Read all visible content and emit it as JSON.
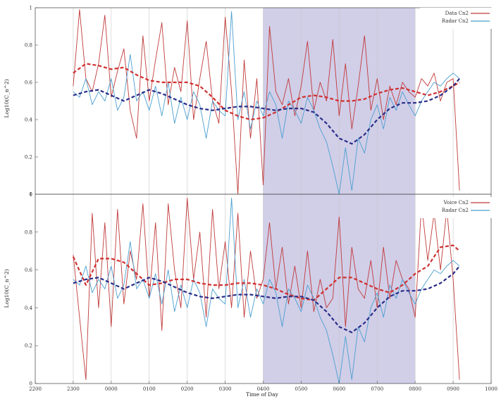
{
  "chart_data": [
    {
      "type": "line",
      "panel": "top",
      "xlabel": "",
      "ylabel": "Log10(C_n^2)",
      "xlim": [
        2200,
        1000
      ],
      "ylim": [
        0,
        1
      ],
      "yticks": [
        "0",
        "0.2",
        "0.4",
        "0.6",
        "0.8",
        "1"
      ],
      "legend_position": "top-right",
      "grid": "vertical",
      "shaded_span": [
        "0400",
        "0800"
      ],
      "colors": {
        "series_a": "#c03a3a",
        "series_b": "#4a9fd0",
        "trend_a": "#d03030",
        "trend_b": "#2a2e88",
        "shade": "#c9c5e4"
      },
      "series": [
        {
          "name": "Data Cn2",
          "x": [
            "2300",
            "2310",
            "2320",
            "2330",
            "2340",
            "2350",
            "0000",
            "0010",
            "0020",
            "0030",
            "0040",
            "0050",
            "0100",
            "0110",
            "0120",
            "0130",
            "0140",
            "0150",
            "0200",
            "0210",
            "0220",
            "0230",
            "0240",
            "0250",
            "0300",
            "0310",
            "0320",
            "0330",
            "0340",
            "0350",
            "0400",
            "0410",
            "0420",
            "0430",
            "0440",
            "0450",
            "0500",
            "0510",
            "0520",
            "0530",
            "0540",
            "0550",
            "0600",
            "0610",
            "0620",
            "0630",
            "0640",
            "0650",
            "0700",
            "0710",
            "0720",
            "0730",
            "0740",
            "0750",
            "0800",
            "0810",
            "0820",
            "0830",
            "0840",
            "0850",
            "0900",
            "0910"
          ],
          "y": [
            0.58,
            0.99,
            0.62,
            0.55,
            0.7,
            0.96,
            0.52,
            0.66,
            0.78,
            0.45,
            0.3,
            0.85,
            0.5,
            0.72,
            0.92,
            0.48,
            0.68,
            0.55,
            0.93,
            0.4,
            0.62,
            0.82,
            0.5,
            0.38,
            0.95,
            0.55,
            0.0,
            0.72,
            0.3,
            0.62,
            0.05,
            0.9,
            0.55,
            0.48,
            0.62,
            0.42,
            0.58,
            0.82,
            0.45,
            0.6,
            0.5,
            0.83,
            0.42,
            0.7,
            0.35,
            0.58,
            0.85,
            0.45,
            0.62,
            0.4,
            0.58,
            0.48,
            0.6,
            0.55,
            0.52,
            0.62,
            0.58,
            0.65,
            0.5,
            0.6,
            0.62,
            0.02
          ]
        },
        {
          "name": "Radar Cn2",
          "x": [
            "2300",
            "2310",
            "2320",
            "2330",
            "2340",
            "2350",
            "0000",
            "0010",
            "0020",
            "0030",
            "0040",
            "0050",
            "0100",
            "0110",
            "0120",
            "0130",
            "0140",
            "0150",
            "0200",
            "0210",
            "0220",
            "0230",
            "0240",
            "0250",
            "0300",
            "0310",
            "0320",
            "0330",
            "0340",
            "0350",
            "0400",
            "0410",
            "0420",
            "0430",
            "0440",
            "0450",
            "0500",
            "0510",
            "0520",
            "0530",
            "0540",
            "0550",
            "0600",
            "0610",
            "0620",
            "0630",
            "0640",
            "0650",
            "0700",
            "0710",
            "0720",
            "0730",
            "0740",
            "0750",
            "0800",
            "0810",
            "0820",
            "0830",
            "0840",
            "0850",
            "0900",
            "0910"
          ],
          "y": [
            0.55,
            0.52,
            0.62,
            0.48,
            0.55,
            0.5,
            0.62,
            0.45,
            0.52,
            0.75,
            0.5,
            0.55,
            0.45,
            0.58,
            0.42,
            0.6,
            0.38,
            0.52,
            0.4,
            0.55,
            0.48,
            0.3,
            0.5,
            0.45,
            0.42,
            0.98,
            0.4,
            0.55,
            0.35,
            0.5,
            0.42,
            0.55,
            0.48,
            0.3,
            0.5,
            0.45,
            0.38,
            0.52,
            0.45,
            0.35,
            0.28,
            0.15,
            0.0,
            0.25,
            0.02,
            0.3,
            0.22,
            0.4,
            0.48,
            0.35,
            0.52,
            0.45,
            0.55,
            0.48,
            0.42,
            0.5,
            0.55,
            0.6,
            0.58,
            0.62,
            0.65,
            0.62
          ]
        },
        {
          "x": [
            "2300",
            "2320",
            "2340",
            "0000",
            "0020",
            "0040",
            "0100",
            "0120",
            "0140",
            "0200",
            "0220",
            "0240",
            "0300",
            "0320",
            "0340",
            "0400",
            "0420",
            "0440",
            "0500",
            "0520",
            "0540",
            "0600",
            "0620",
            "0640",
            "0700",
            "0720",
            "0740",
            "0800",
            "0820",
            "0840",
            "0900",
            "0910"
          ],
          "y": [
            0.65,
            0.7,
            0.69,
            0.67,
            0.68,
            0.64,
            0.61,
            0.6,
            0.6,
            0.6,
            0.58,
            0.52,
            0.45,
            0.42,
            0.4,
            0.41,
            0.44,
            0.48,
            0.52,
            0.53,
            0.52,
            0.5,
            0.5,
            0.51,
            0.54,
            0.56,
            0.57,
            0.55,
            0.53,
            0.55,
            0.58,
            0.6
          ]
        },
        {
          "x": [
            "2300",
            "2320",
            "2340",
            "0000",
            "0020",
            "0040",
            "0100",
            "0120",
            "0140",
            "0200",
            "0220",
            "0240",
            "0300",
            "0320",
            "0340",
            "0400",
            "0420",
            "0440",
            "0500",
            "0520",
            "0540",
            "0600",
            "0620",
            "0640",
            "0700",
            "0720",
            "0740",
            "0800",
            "0820",
            "0840",
            "0900",
            "0910"
          ],
          "y": [
            0.53,
            0.55,
            0.56,
            0.53,
            0.5,
            0.53,
            0.56,
            0.54,
            0.51,
            0.48,
            0.46,
            0.45,
            0.46,
            0.47,
            0.47,
            0.46,
            0.45,
            0.46,
            0.46,
            0.44,
            0.38,
            0.3,
            0.27,
            0.32,
            0.4,
            0.46,
            0.49,
            0.49,
            0.5,
            0.53,
            0.58,
            0.62
          ]
        }
      ]
    },
    {
      "type": "line",
      "panel": "bottom",
      "xlabel": "Time of Day",
      "ylabel": "Log10(C_n^2)",
      "xlim": [
        2200,
        1000
      ],
      "ylim": [
        0,
        1
      ],
      "xticks": [
        "2200",
        "2300",
        "0000",
        "0100",
        "0200",
        "0300",
        "0400",
        "0500",
        "0600",
        "0700",
        "0800",
        "0900",
        "1000"
      ],
      "yticks": [
        "0",
        "0.2",
        "0.4",
        "0.6",
        "0.8",
        "1"
      ],
      "legend_position": "top-right",
      "grid": "vertical",
      "shaded_span": [
        "0400",
        "0800"
      ],
      "series": [
        {
          "name": "Voice Cn2",
          "x": [
            "2300",
            "2310",
            "2320",
            "2330",
            "2340",
            "2350",
            "0000",
            "0010",
            "0020",
            "0030",
            "0040",
            "0050",
            "0100",
            "0110",
            "0120",
            "0130",
            "0140",
            "0150",
            "0200",
            "0210",
            "0220",
            "0230",
            "0240",
            "0250",
            "0300",
            "0310",
            "0320",
            "0330",
            "0340",
            "0350",
            "0400",
            "0410",
            "0420",
            "0430",
            "0440",
            "0450",
            "0500",
            "0510",
            "0520",
            "0530",
            "0540",
            "0550",
            "0600",
            "0610",
            "0620",
            "0630",
            "0640",
            "0650",
            "0700",
            "0710",
            "0720",
            "0730",
            "0740",
            "0750",
            "0800",
            "0810",
            "0820",
            "0830",
            "0840",
            "0850",
            "0900",
            "0910"
          ],
          "y": [
            0.68,
            0.35,
            0.02,
            0.9,
            0.4,
            0.85,
            0.3,
            0.92,
            0.42,
            0.7,
            0.55,
            0.95,
            0.45,
            0.85,
            0.28,
            0.95,
            0.6,
            0.4,
            0.98,
            0.55,
            0.8,
            0.35,
            0.92,
            0.5,
            0.75,
            0.4,
            0.9,
            0.35,
            0.7,
            0.45,
            0.55,
            0.85,
            0.5,
            0.72,
            0.42,
            0.62,
            0.4,
            0.7,
            0.38,
            0.55,
            0.4,
            0.45,
            0.88,
            0.3,
            0.72,
            0.5,
            0.45,
            0.65,
            0.4,
            0.72,
            0.45,
            0.65,
            0.55,
            0.5,
            0.35,
            0.95,
            0.65,
            0.9,
            0.6,
            0.92,
            0.55,
            0.02
          ]
        },
        {
          "name": "Radar Cn2",
          "x": [
            "2300",
            "2310",
            "2320",
            "2330",
            "2340",
            "2350",
            "0000",
            "0010",
            "0020",
            "0030",
            "0040",
            "0050",
            "0100",
            "0110",
            "0120",
            "0130",
            "0140",
            "0150",
            "0200",
            "0210",
            "0220",
            "0230",
            "0240",
            "0250",
            "0300",
            "0310",
            "0320",
            "0330",
            "0340",
            "0350",
            "0400",
            "0410",
            "0420",
            "0430",
            "0440",
            "0450",
            "0500",
            "0510",
            "0520",
            "0530",
            "0540",
            "0550",
            "0600",
            "0610",
            "0620",
            "0630",
            "0640",
            "0650",
            "0700",
            "0710",
            "0720",
            "0730",
            "0740",
            "0750",
            "0800",
            "0810",
            "0820",
            "0830",
            "0840",
            "0850",
            "0900",
            "0910"
          ],
          "y": [
            0.55,
            0.52,
            0.62,
            0.48,
            0.55,
            0.5,
            0.62,
            0.45,
            0.52,
            0.75,
            0.5,
            0.55,
            0.45,
            0.58,
            0.42,
            0.6,
            0.38,
            0.52,
            0.4,
            0.55,
            0.48,
            0.3,
            0.5,
            0.45,
            0.42,
            0.98,
            0.4,
            0.55,
            0.35,
            0.5,
            0.42,
            0.55,
            0.48,
            0.3,
            0.5,
            0.45,
            0.38,
            0.52,
            0.45,
            0.35,
            0.28,
            0.15,
            0.0,
            0.25,
            0.02,
            0.3,
            0.22,
            0.4,
            0.48,
            0.35,
            0.52,
            0.45,
            0.55,
            0.48,
            0.42,
            0.5,
            0.55,
            0.6,
            0.58,
            0.62,
            0.65,
            0.62
          ]
        },
        {
          "x": [
            "2300",
            "2320",
            "2340",
            "0000",
            "0020",
            "0040",
            "0100",
            "0120",
            "0140",
            "0200",
            "0220",
            "0240",
            "0300",
            "0320",
            "0340",
            "0400",
            "0420",
            "0440",
            "0500",
            "0520",
            "0540",
            "0600",
            "0620",
            "0640",
            "0700",
            "0720",
            "0740",
            "0800",
            "0820",
            "0840",
            "0900",
            "0910"
          ],
          "y": [
            0.67,
            0.52,
            0.66,
            0.66,
            0.64,
            0.58,
            0.52,
            0.53,
            0.55,
            0.55,
            0.53,
            0.52,
            0.52,
            0.53,
            0.53,
            0.52,
            0.5,
            0.47,
            0.45,
            0.44,
            0.5,
            0.56,
            0.56,
            0.53,
            0.5,
            0.48,
            0.52,
            0.58,
            0.62,
            0.72,
            0.73,
            0.7
          ]
        },
        {
          "x": [
            "2300",
            "2320",
            "2340",
            "0000",
            "0020",
            "0040",
            "0100",
            "0120",
            "0140",
            "0200",
            "0220",
            "0240",
            "0300",
            "0320",
            "0340",
            "0400",
            "0420",
            "0440",
            "0500",
            "0520",
            "0540",
            "0600",
            "0620",
            "0640",
            "0700",
            "0720",
            "0740",
            "0800",
            "0820",
            "0840",
            "0900",
            "0910"
          ],
          "y": [
            0.53,
            0.55,
            0.56,
            0.53,
            0.5,
            0.53,
            0.56,
            0.54,
            0.51,
            0.48,
            0.46,
            0.45,
            0.46,
            0.47,
            0.47,
            0.46,
            0.45,
            0.46,
            0.46,
            0.44,
            0.38,
            0.3,
            0.27,
            0.32,
            0.4,
            0.46,
            0.49,
            0.49,
            0.5,
            0.53,
            0.58,
            0.62
          ]
        }
      ]
    }
  ]
}
